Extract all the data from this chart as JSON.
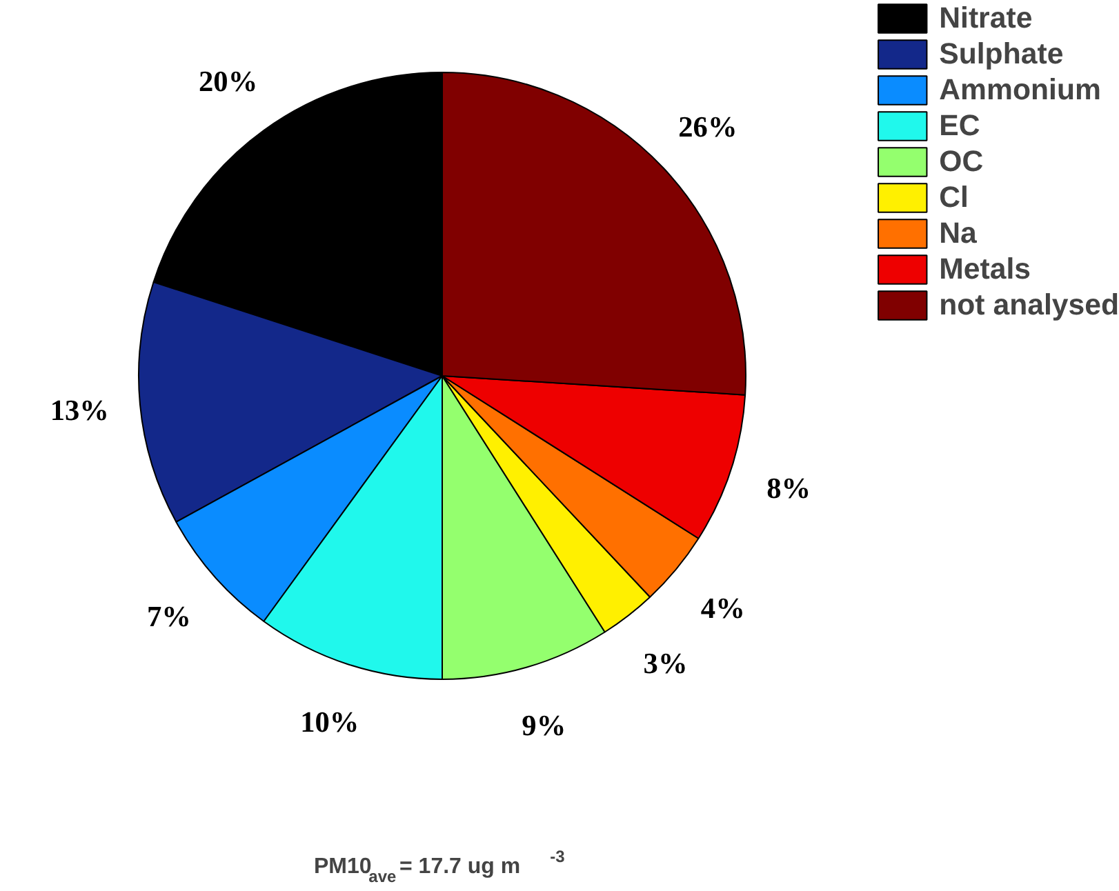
{
  "chart_data": {
    "type": "pie",
    "categories": [
      "Nitrate",
      "Sulphate",
      "Ammonium",
      "EC",
      "OC",
      "Cl",
      "Na",
      "Metals",
      "not analysed"
    ],
    "values": [
      20,
      13,
      7,
      10,
      9,
      3,
      4,
      8,
      26
    ],
    "colors": [
      "#000000",
      "#13288a",
      "#0a8cff",
      "#20f8ec",
      "#94ff6e",
      "#fff000",
      "#ff7000",
      "#ee0000",
      "#800000"
    ],
    "value_labels": [
      "20%",
      "13%",
      "7%",
      "10%",
      "9%",
      "3%",
      "4%",
      "8%",
      "26%"
    ],
    "legend": "top right",
    "annotations": [
      "PM10$_{ave}$= 17.7 ug m$^{-3}$"
    ]
  }
}
